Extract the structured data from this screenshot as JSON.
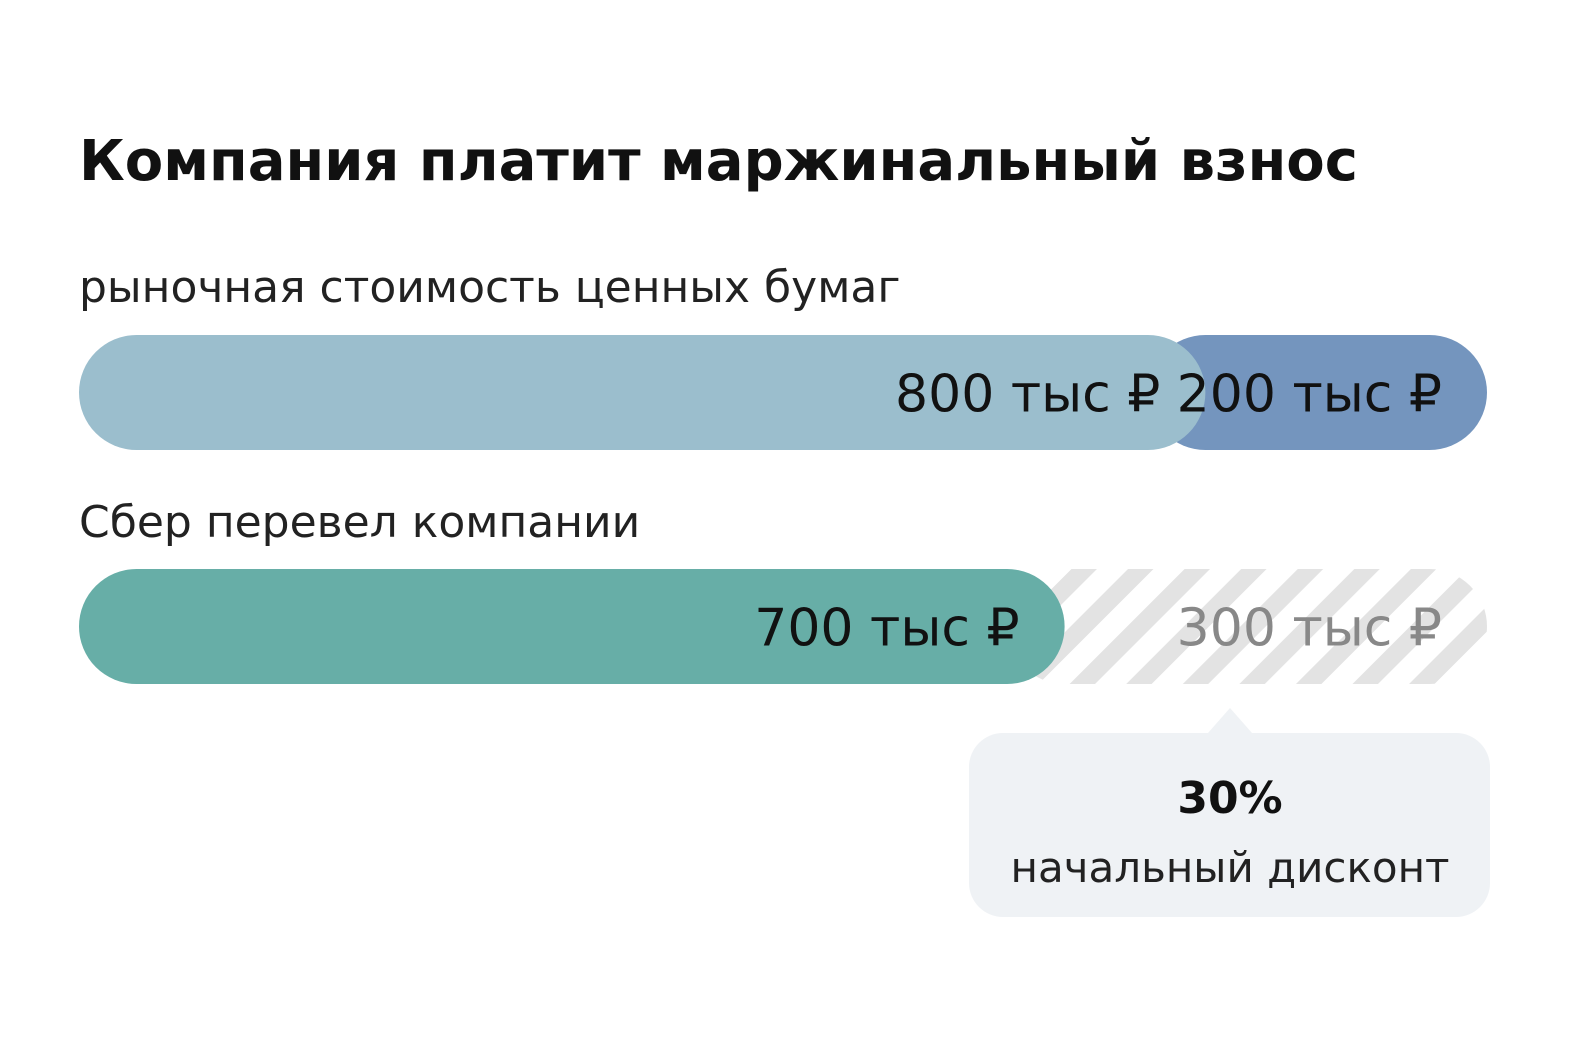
{
  "chart_data": {
    "type": "segmented-bar",
    "title": "Компания платит маржинальный взнос",
    "rows": [
      {
        "label": "рыночная стоимость ценных бумаг",
        "values": [
          800,
          200
        ],
        "value_labels": [
          "800 тыс ₽",
          "200 тыс ₽"
        ],
        "colors": [
          "#9bbecd",
          "#7495be"
        ],
        "hatched": [
          false,
          false
        ]
      },
      {
        "label": "Сбер перевел компании",
        "values": [
          700,
          300
        ],
        "value_labels": [
          "700 тыс ₽",
          "300 тыс ₽"
        ],
        "colors": [
          "#67aea7",
          "#e3e3e3"
        ],
        "hatched": [
          false,
          true
        ]
      }
    ],
    "annotation": {
      "value": 30,
      "label": "30%",
      "text": "начальный дисконт"
    }
  }
}
